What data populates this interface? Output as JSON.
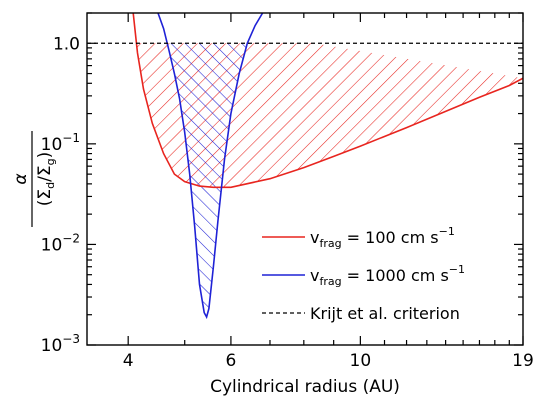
{
  "chart_data": {
    "type": "line",
    "xlabel": "Cylindrical radius (AU)",
    "ylabel_numerator": "α",
    "ylabel_denominator": "(Σd/Σg)",
    "xscale": "log",
    "yscale": "log",
    "xlim": [
      3.4,
      19
    ],
    "ylim": [
      0.001,
      2
    ],
    "x_ticks": [
      {
        "value": 4,
        "label": "4"
      },
      {
        "value": 6,
        "label": "6"
      },
      {
        "value": 10,
        "label": "10"
      },
      {
        "value": 19,
        "label": "19"
      }
    ],
    "y_ticks": [
      {
        "value": 0.001,
        "base": "10",
        "exp": "−3"
      },
      {
        "value": 0.01,
        "base": "10",
        "exp": "−2"
      },
      {
        "value": 0.1,
        "base": "10",
        "exp": "−1"
      },
      {
        "value": 1,
        "label": "1.0"
      }
    ],
    "legend_position": "bottom-right",
    "series": [
      {
        "name": "v_frag = 100 cm s^-1",
        "legend_main": "v",
        "legend_sub": "frag",
        "legend_rest": " = 100 cm s",
        "legend_sup": "−1",
        "color": "#e8251f",
        "style": "solid",
        "hatch": "forward",
        "points": [
          [
            4.08,
            2.0
          ],
          [
            4.15,
            0.8
          ],
          [
            4.25,
            0.35
          ],
          [
            4.4,
            0.16
          ],
          [
            4.6,
            0.08
          ],
          [
            4.8,
            0.05
          ],
          [
            5.0,
            0.042
          ],
          [
            5.3,
            0.038
          ],
          [
            5.6,
            0.037
          ],
          [
            6.0,
            0.037
          ],
          [
            7.0,
            0.045
          ],
          [
            8.0,
            0.058
          ],
          [
            9.0,
            0.075
          ],
          [
            10.0,
            0.095
          ],
          [
            12.0,
            0.145
          ],
          [
            14.0,
            0.21
          ],
          [
            16.0,
            0.29
          ],
          [
            18.0,
            0.38
          ],
          [
            19.0,
            0.45
          ]
        ]
      },
      {
        "name": "v_frag = 1000 cm s^-1",
        "legend_main": "v",
        "legend_sub": "frag",
        "legend_rest": " = 1000 cm s",
        "legend_sup": "−1",
        "color": "#1f22d6",
        "style": "solid",
        "hatch": "back",
        "points": [
          [
            4.5,
            2.0
          ],
          [
            4.6,
            1.4
          ],
          [
            4.7,
            0.85
          ],
          [
            4.8,
            0.5
          ],
          [
            4.9,
            0.28
          ],
          [
            5.0,
            0.13
          ],
          [
            5.1,
            0.05
          ],
          [
            5.2,
            0.015
          ],
          [
            5.3,
            0.004
          ],
          [
            5.4,
            0.0021
          ],
          [
            5.45,
            0.0019
          ],
          [
            5.5,
            0.0023
          ],
          [
            5.6,
            0.006
          ],
          [
            5.7,
            0.017
          ],
          [
            5.85,
            0.07
          ],
          [
            6.0,
            0.2
          ],
          [
            6.2,
            0.5
          ],
          [
            6.4,
            1.0
          ],
          [
            6.6,
            1.5
          ],
          [
            6.8,
            2.0
          ]
        ]
      },
      {
        "name": "Krijt et al. criterion",
        "legend_main": "Krijt et al. criterion",
        "color": "#000000",
        "style": "dashed",
        "y_constant": 1.0
      }
    ]
  }
}
